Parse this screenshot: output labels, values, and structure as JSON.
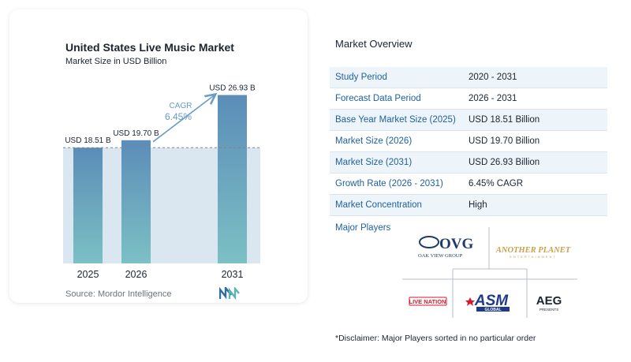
{
  "chart_data": {
    "type": "bar",
    "title": "United States Live Music Market",
    "subtitle": "Market Size in USD Billion",
    "categories": [
      "2025",
      "2026",
      "2031"
    ],
    "values": [
      18.51,
      19.7,
      26.93
    ],
    "data_labels": [
      "USD 18.51 B",
      "USD 19.70 B",
      "USD 26.93 B"
    ],
    "annotation": {
      "label": "CAGR",
      "value": "6.45%"
    },
    "ylim": [
      0,
      28
    ],
    "colors": {
      "bar_top": "#5b8db8",
      "bar_bottom": "#7cc0c4",
      "band": "#dbe7f0",
      "arrow": "#6a9cc9"
    }
  },
  "source": "Source: Mordor Intelligence",
  "overview": {
    "title": "Market Overview",
    "rows": [
      {
        "label": "Study Period",
        "value": "2020 - 2031"
      },
      {
        "label": "Forecast Data Period",
        "value": "2026 - 2031"
      },
      {
        "label": "Base Year Market Size (2025)",
        "value": "USD 18.51 Billion"
      },
      {
        "label": "Market Size (2026)",
        "value": "USD 19.70 Billion"
      },
      {
        "label": "Market Size (2031)",
        "value": "USD 26.93 Billion"
      },
      {
        "label": "Growth Rate (2026 - 2031)",
        "value": "6.45% CAGR"
      },
      {
        "label": "Market Concentration",
        "value": "High"
      }
    ],
    "players_title": "Major Players",
    "players": [
      {
        "name": "OVG",
        "subtitle": "OAK VIEW GROUP"
      },
      {
        "name": "ANOTHER PLANET",
        "subtitle": "ENTERTAINMENT"
      },
      {
        "name": "LIVE NATION"
      },
      {
        "name": "ASM",
        "subtitle": "GLOBAL"
      },
      {
        "name": "AEG",
        "subtitle": "PRESENTS"
      }
    ],
    "disclaimer": "*Disclaimer: Major Players sorted in no particular order"
  }
}
